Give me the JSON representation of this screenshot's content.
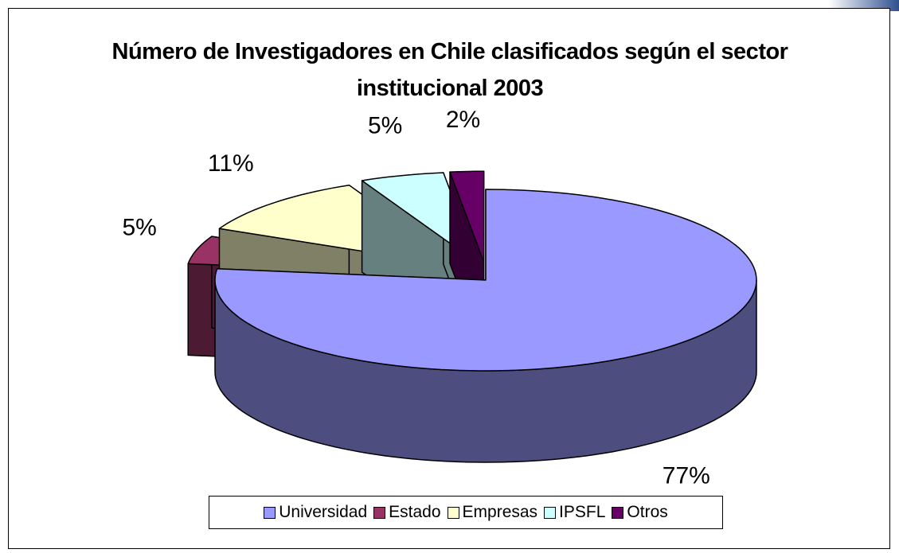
{
  "chart_data": {
    "type": "pie",
    "title": "Número de Investigadores en Chile clasificados según el sector institucional 2003",
    "categories": [
      "Universidad",
      "Estado",
      "Empresas",
      "IPSFL",
      "Otros"
    ],
    "values": [
      77,
      5,
      11,
      5,
      2
    ],
    "value_labels": [
      "77%",
      "5%",
      "11%",
      "5%",
      "2%"
    ],
    "colors": [
      "#9999ff",
      "#993366",
      "#ffffcc",
      "#ccffff",
      "#660066"
    ],
    "legend": "bottom"
  }
}
